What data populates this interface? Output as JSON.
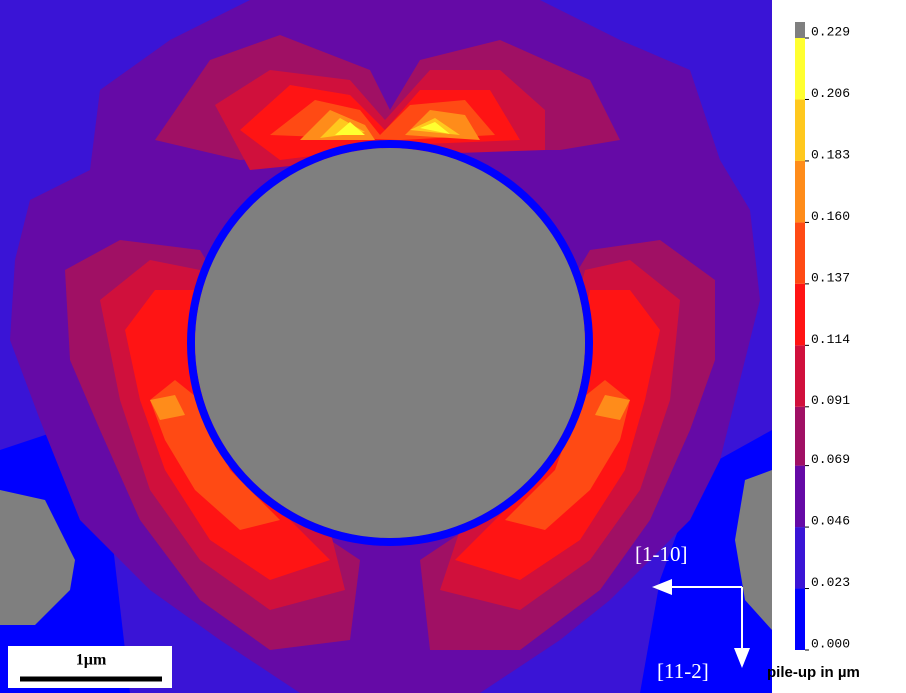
{
  "chart_data": {
    "type": "contour",
    "scale_bar": "1µm",
    "directions": [
      "[1-10]",
      "[11-2]"
    ],
    "colorbar": {
      "label": "pile-up in µm",
      "lim": [
        0,
        0.229
      ],
      "ticks": [
        {
          "value": 0,
          "label": "0.000"
        },
        {
          "value": 0.023,
          "label": "0.023"
        },
        {
          "value": 0.046,
          "label": "0.046"
        },
        {
          "value": 0.069,
          "label": "0.069"
        },
        {
          "value": 0.091,
          "label": "0.091"
        },
        {
          "value": 0.114,
          "label": "0.114"
        },
        {
          "value": 0.137,
          "label": "0.137"
        },
        {
          "value": 0.16,
          "label": "0.160"
        },
        {
          "value": 0.183,
          "label": "0.183"
        },
        {
          "value": 0.206,
          "label": "0.206"
        },
        {
          "value": 0.229,
          "label": "0.229"
        }
      ],
      "colors": [
        "#0000ff",
        "#3a14d6",
        "#650aa6",
        "#a01064",
        "#d0103c",
        "#ff1414",
        "#ff4a14",
        "#ff8c1a",
        "#ffc81e",
        "#ffff30",
        "#7f7f7f"
      ]
    }
  }
}
